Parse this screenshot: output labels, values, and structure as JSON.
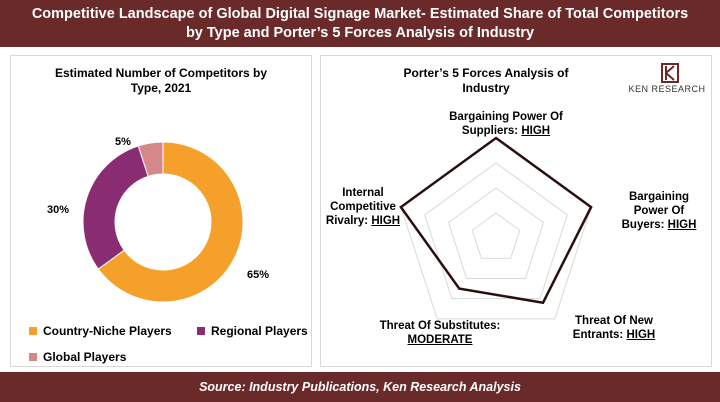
{
  "header": {
    "line1": "Competitive Landscape of Global Digital Signage Market- Estimated Share of Total Competitors",
    "line2": "by Type and Porter’s 5 Forces Analysis of Industry"
  },
  "footer": {
    "source": "Source: Industry Publications, Ken Research Analysis"
  },
  "logo": {
    "text": "KEN RESEARCH",
    "icon": "ken-research-logo"
  },
  "colors": {
    "brand": "#6b2a2a",
    "country_niche": "#f5a02a",
    "regional": "#8a2c72",
    "global": "#d4888a"
  },
  "chart_data": [
    {
      "type": "pie",
      "title_line1": "Estimated Number of Competitors by",
      "title_line2": "Type, 2021",
      "slices": [
        {
          "name": "Country-Niche Players",
          "value": 65,
          "label": "65%"
        },
        {
          "name": "Regional Players",
          "value": 30,
          "label": "30%"
        },
        {
          "name": "Global Players",
          "value": 5,
          "label": "5%"
        }
      ],
      "donut": true,
      "legend_placement": "bottom"
    },
    {
      "type": "radar",
      "title_line1": "Porter’s 5 Forces Analysis of",
      "title_line2": "Industry",
      "axes": [
        {
          "name_line1": "Bargaining Power Of",
          "name_line2": "Suppliers:",
          "level": "HIGH",
          "value": 4
        },
        {
          "name_line1": "Bargaining",
          "name_line2": "Power Of",
          "name_line3": "Buyers:",
          "level": "HIGH",
          "value": 4
        },
        {
          "name_line1": "Threat Of New",
          "name_line2": "Entrants:",
          "level": "HIGH",
          "value": 3.2
        },
        {
          "name_line1": "Threat Of Substitutes:",
          "name_line2": "",
          "level": "MODERATE",
          "value": 2.5
        },
        {
          "name_line1": "Internal",
          "name_line2": "Competitive",
          "name_line3": "Rivalry:",
          "level": "HIGH",
          "value": 4
        }
      ],
      "scale_max": 4,
      "grid_rings": 4
    }
  ]
}
